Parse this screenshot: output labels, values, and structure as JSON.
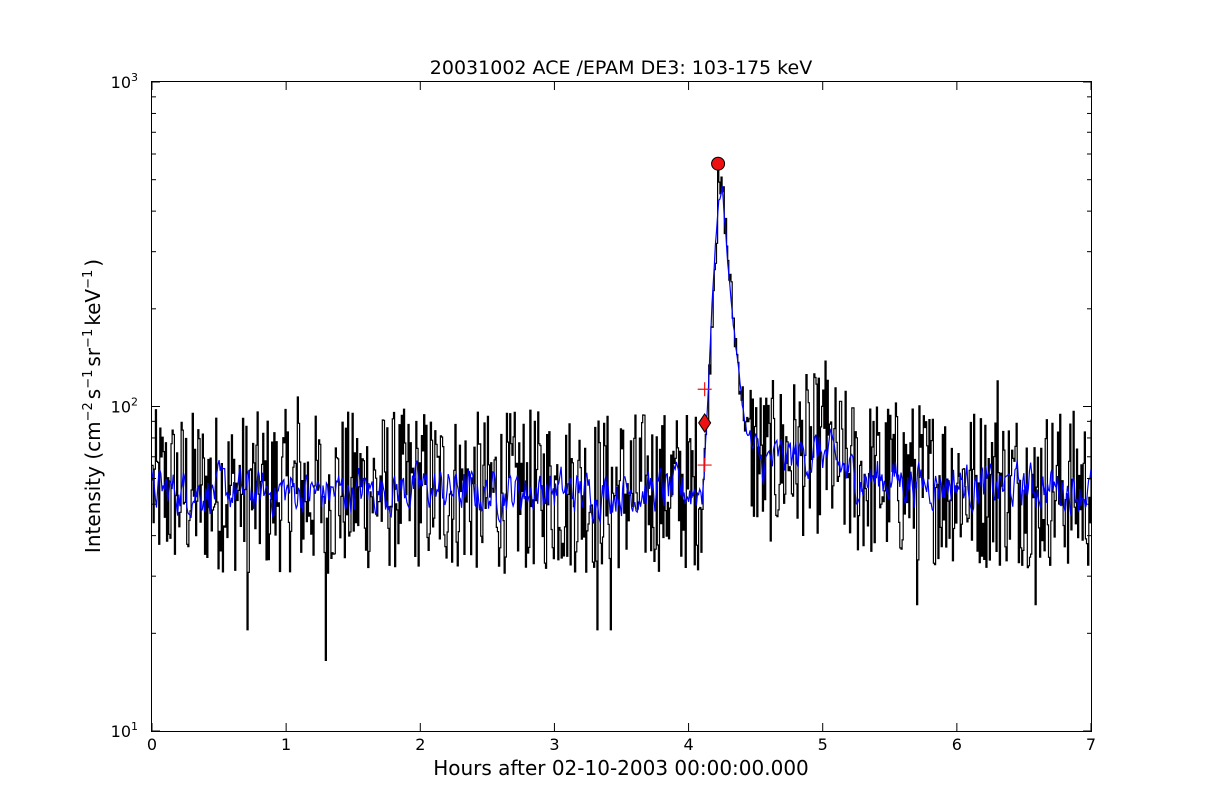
{
  "chart_data": {
    "type": "line",
    "title": "20031002 ACE /EPAM DE3: 103-175 keV",
    "xlabel": "Hours after 02-10-2003 00:00:00.000",
    "ylabel_parts": {
      "prefix": "Intensity (cm",
      "exp1": "−2",
      "s": "s",
      "exp2": "−1",
      "sr": "sr",
      "exp3": "−1",
      "kev": "keV",
      "exp4": "−1",
      "suffix": ")"
    },
    "xlim": [
      0,
      7
    ],
    "ylim": [
      10,
      1000
    ],
    "yscale": "log",
    "x_ticks": [
      0,
      1,
      2,
      3,
      4,
      5,
      6,
      7
    ],
    "x_tick_labels": [
      "0",
      "1",
      "2",
      "3",
      "4",
      "5",
      "6",
      "7"
    ],
    "y_ticks": [
      10,
      100,
      1000
    ],
    "y_tick_labels": [
      {
        "base": "10",
        "exp": "1"
      },
      {
        "base": "10",
        "exp": "2"
      },
      {
        "base": "10",
        "exp": "3"
      }
    ],
    "grid": false,
    "series": [
      {
        "color": "#000000",
        "style": "raw",
        "anchors_x": [
          0,
          0.25,
          0.5,
          0.75,
          1.0,
          1.25,
          1.5,
          1.75,
          2.0,
          2.25,
          2.5,
          2.75,
          3.0,
          3.25,
          3.5,
          3.75,
          4.0,
          4.1,
          4.13,
          4.16,
          4.19,
          4.22,
          4.25,
          4.28,
          4.31,
          4.34,
          4.38,
          4.42,
          4.46,
          4.55,
          4.75,
          5.0,
          5.25,
          5.5,
          5.75,
          6.0,
          6.25,
          6.5,
          6.75,
          7.0
        ],
        "anchors_y": [
          55,
          55,
          55,
          54,
          55,
          54,
          55,
          55,
          56,
          55,
          54,
          55,
          55,
          54,
          55,
          55,
          55,
          56,
          80,
          150,
          270,
          420,
          470,
          330,
          230,
          170,
          120,
          90,
          75,
          66,
          70,
          72,
          60,
          60,
          58,
          58,
          56,
          57,
          56,
          55
        ],
        "noise": 0.58,
        "extremes": [
          {
            "x": 0.71,
            "y": 20.5
          },
          {
            "x": 1.29,
            "y": 16.5
          },
          {
            "x": 1.08,
            "y": 107
          },
          {
            "x": 3.32,
            "y": 20.5
          },
          {
            "x": 3.42,
            "y": 20.5
          },
          {
            "x": 5.02,
            "y": 138
          },
          {
            "x": 5.7,
            "y": 24.5
          },
          {
            "x": 6.58,
            "y": 24.5
          },
          {
            "x": 6.3,
            "y": 120
          },
          {
            "x": 4.22,
            "y": 560
          }
        ]
      },
      {
        "color": "#0000ff",
        "style": "smoothed",
        "anchors_x": [
          0,
          0.25,
          0.5,
          0.75,
          1.0,
          1.25,
          1.5,
          1.75,
          2.0,
          2.25,
          2.5,
          2.75,
          3.0,
          3.25,
          3.5,
          3.75,
          4.0,
          4.1,
          4.13,
          4.16,
          4.19,
          4.22,
          4.25,
          4.28,
          4.31,
          4.34,
          4.38,
          4.42,
          4.46,
          4.55,
          4.75,
          5.0,
          5.25,
          5.5,
          5.75,
          6.0,
          6.25,
          6.5,
          6.75,
          7.0
        ],
        "anchors_y": [
          55,
          55,
          55,
          54,
          55,
          54,
          55,
          55,
          56,
          55,
          54,
          55,
          55,
          54,
          55,
          55,
          55,
          56,
          80,
          150,
          270,
          420,
          470,
          330,
          230,
          170,
          120,
          90,
          75,
          66,
          70,
          72,
          60,
          60,
          58,
          58,
          56,
          57,
          56,
          55
        ],
        "noise": 0.28
      }
    ],
    "markers": [
      {
        "shape": "circle",
        "x": 4.22,
        "y": 560,
        "color": "#ee1111"
      },
      {
        "shape": "diamond",
        "x": 4.12,
        "y": 89,
        "color": "#ee1111"
      },
      {
        "shape": "plus",
        "x": 4.12,
        "y": 113,
        "color": "#ee1111"
      },
      {
        "shape": "plus",
        "x": 4.12,
        "y": 66,
        "color": "#ee1111"
      }
    ]
  }
}
